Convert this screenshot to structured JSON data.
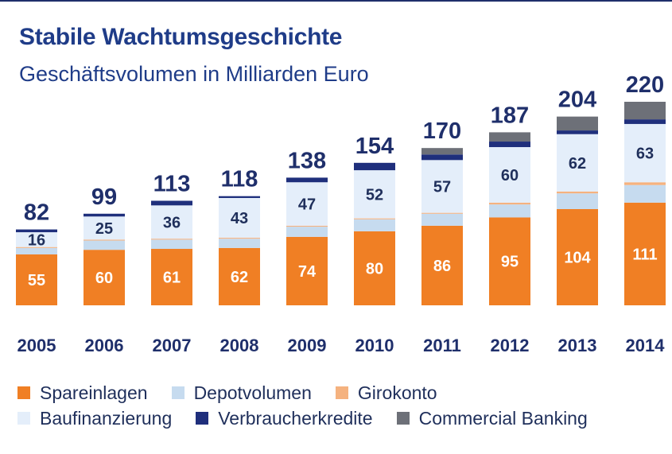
{
  "chart_data": {
    "type": "bar",
    "stacked": true,
    "title": "Stabile Wachtumsgeschichte",
    "subtitle": "Geschäftsvolumen in Milliarden Euro",
    "categories": [
      "2005",
      "2006",
      "2007",
      "2008",
      "2009",
      "2010",
      "2011",
      "2012",
      "2013",
      "2014"
    ],
    "totals": [
      82,
      99,
      113,
      118,
      138,
      154,
      170,
      187,
      204,
      220
    ],
    "series": [
      {
        "name": "Spareinlagen",
        "color": "#f07f24",
        "values": [
          55,
          60,
          61,
          62,
          74,
          80,
          86,
          95,
          104,
          111
        ],
        "labeled": true
      },
      {
        "name": "Depotvolumen",
        "color": "#c6dbef",
        "values": [
          7,
          10,
          10,
          10,
          11,
          13,
          13,
          14,
          17,
          19
        ],
        "labeled": false
      },
      {
        "name": "Girokonto",
        "color": "#f5b27f",
        "values": [
          1,
          1,
          1,
          1,
          1,
          1,
          1,
          2,
          2,
          3
        ],
        "labeled": false
      },
      {
        "name": "Baufinanzierung",
        "color": "#e4eefa",
        "values": [
          16,
          25,
          36,
          43,
          47,
          52,
          57,
          60,
          62,
          63
        ],
        "labeled": true
      },
      {
        "name": "Verbraucherkredite",
        "color": "#1f2f7c",
        "values": [
          3,
          3,
          5,
          2,
          5,
          8,
          6,
          6,
          4,
          5
        ],
        "labeled": false
      },
      {
        "name": "Commercial Banking",
        "color": "#6d7078",
        "values": [
          0,
          0,
          0,
          0,
          0,
          0,
          7,
          10,
          15,
          19
        ],
        "labeled": false
      }
    ],
    "ylim": [
      0,
      220
    ],
    "grid": false,
    "legend_position": "bottom"
  }
}
